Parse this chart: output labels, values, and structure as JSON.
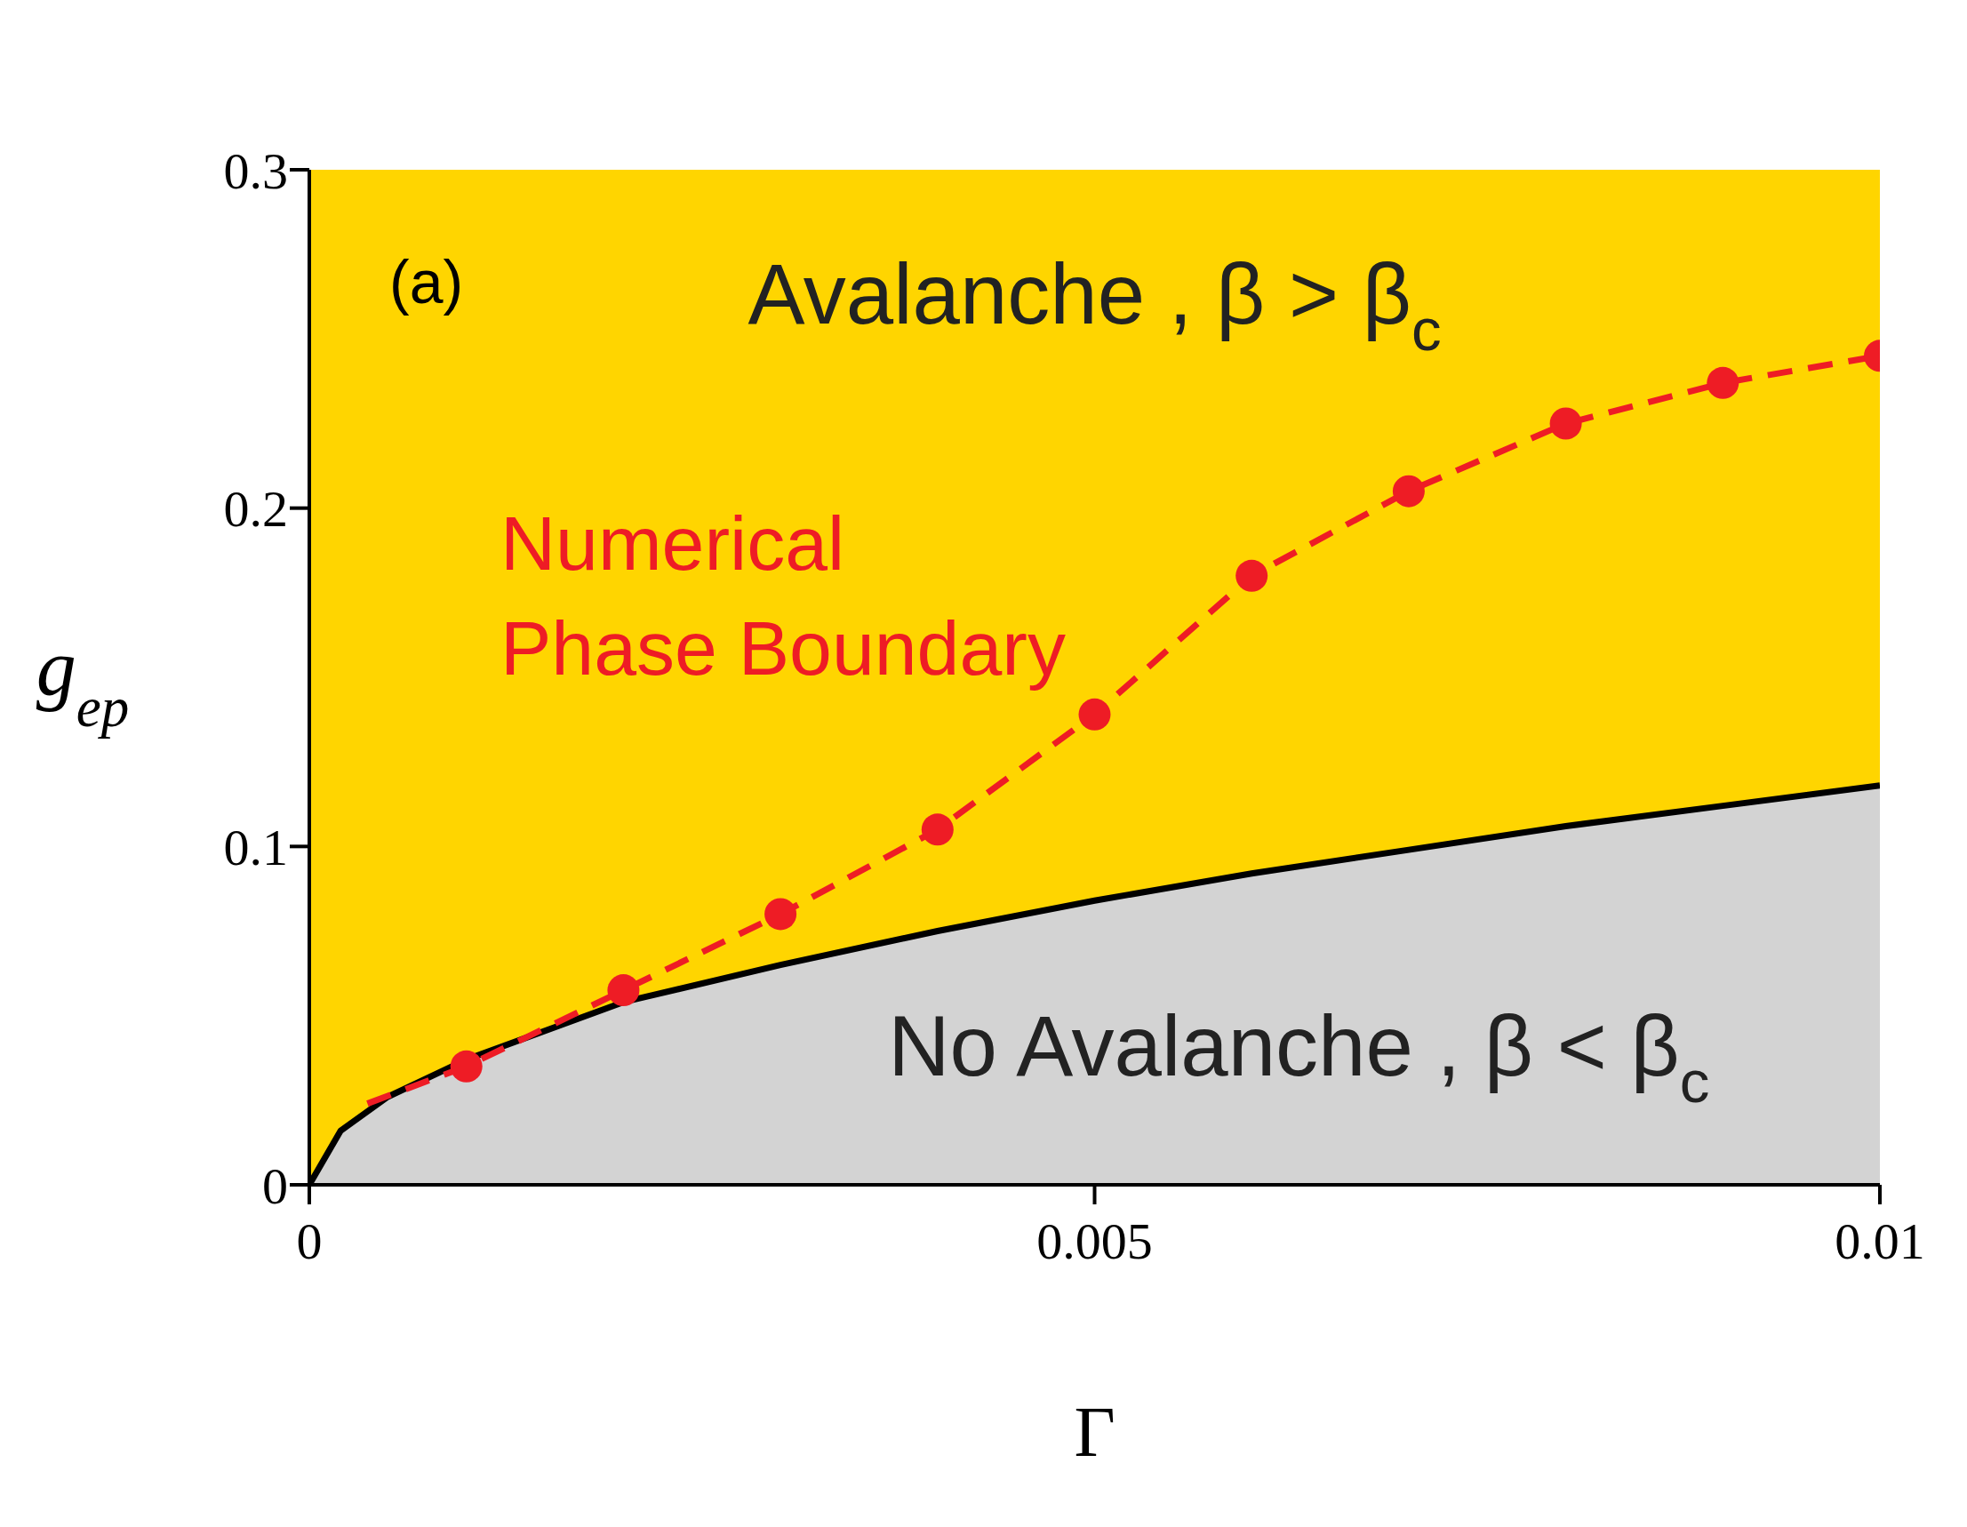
{
  "chart_data": {
    "type": "line",
    "xlabel": "Γ",
    "ylabel": "g$_{ep}$",
    "xlim": [
      0,
      0.01
    ],
    "ylim": [
      0,
      0.3
    ],
    "xticks": [
      0,
      0.005,
      0.01
    ],
    "yticks": [
      0,
      0.1,
      0.2,
      0.3
    ],
    "grid": false,
    "bands": [
      {
        "axis": "y",
        "from": 0,
        "to": 0.3,
        "color": "#ffd500"
      }
    ],
    "annotations": [
      "(a)",
      "Avalanche , β > β$_{c}$",
      "No Avalanche , β < β$_{c}$"
    ],
    "series": [
      {
        "type": "area",
        "color": "#d3d3d3",
        "x": [
          0,
          0.0002,
          0.0005,
          0.001,
          0.002,
          0.003,
          0.004,
          0.005,
          0.006,
          0.007,
          0.008,
          0.009,
          0.01
        ],
        "values": [
          0,
          0.016,
          0.026,
          0.037,
          0.054,
          0.065,
          0.075,
          0.084,
          0.092,
          0.099,
          0.106,
          0.112,
          0.118
        ]
      },
      {
        "type": "line",
        "color": "#ee1c25",
        "marker": "none",
        "line_style": "dashed",
        "x": [
          0.00037,
          0.001,
          0.002,
          0.003,
          0.004,
          0.005,
          0.006,
          0.007,
          0.008,
          0.009,
          0.01
        ],
        "values": [
          0.024,
          0.035,
          0.0575,
          0.08,
          0.105,
          0.139,
          0.18,
          0.205,
          0.225,
          0.237,
          0.245
        ]
      },
      {
        "type": "scatter",
        "name": "Numerical Phase Boundary",
        "color": "#ee1c25",
        "marker": "circle",
        "x": [
          0.001,
          0.002,
          0.003,
          0.004,
          0.005,
          0.006,
          0.007,
          0.008,
          0.009,
          0.01
        ],
        "values": [
          0.035,
          0.0575,
          0.08,
          0.105,
          0.139,
          0.18,
          0.205,
          0.225,
          0.237,
          0.245
        ]
      }
    ]
  }
}
